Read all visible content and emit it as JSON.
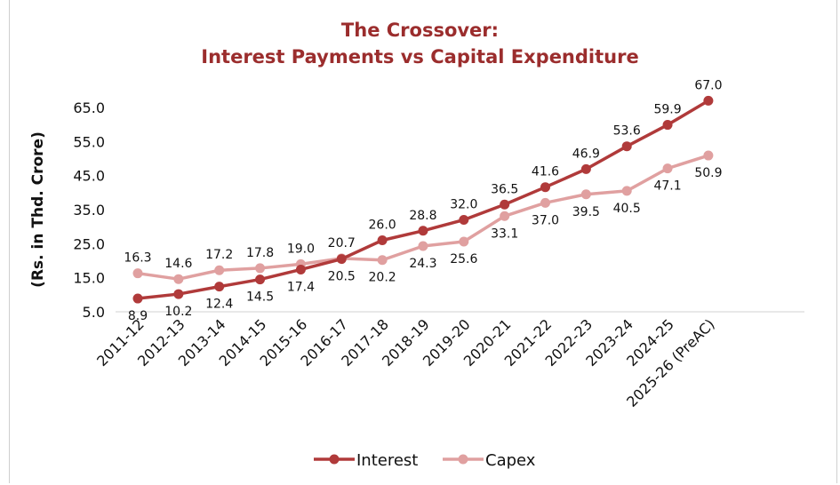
{
  "chart_data": {
    "type": "line",
    "title": "The Crossover:",
    "subtitle": "Interest Payments vs Capital Expenditure",
    "ylabel": "(Rs. in Thd. Crore)",
    "xlabel": "",
    "categories": [
      "2011-12",
      "2012-13",
      "2013-14",
      "2014-15",
      "2015-16",
      "2016-17",
      "2017-18",
      "2018-19",
      "2019-20",
      "2020-21",
      "2021-22",
      "2022-23",
      "2023-24",
      "2024-25",
      "2025-26 (PreAC)"
    ],
    "ylim": [
      5.0,
      65.0
    ],
    "yticks": [
      "5.0",
      "15.0",
      "25.0",
      "35.0",
      "45.0",
      "55.0",
      "65.0"
    ],
    "grid": false,
    "legend_position": "bottom",
    "series": [
      {
        "name": "Interest",
        "color": "#b03a3a",
        "values": [
          8.9,
          10.2,
          12.4,
          14.5,
          17.4,
          20.5,
          26.0,
          28.8,
          32.0,
          36.5,
          41.6,
          46.9,
          53.6,
          59.9,
          67.0
        ],
        "labels": [
          "8.9",
          "10.2",
          "12.4",
          "14.5",
          "17.4",
          "20.5",
          "26.0",
          "28.8",
          "32.0",
          "36.5",
          "41.6",
          "46.9",
          "53.6",
          "59.9",
          "67.0"
        ]
      },
      {
        "name": "Capex",
        "color": "#e0a0a0",
        "values": [
          16.3,
          14.6,
          17.2,
          17.8,
          19.0,
          20.7,
          20.2,
          24.3,
          25.6,
          33.1,
          37.0,
          39.5,
          40.5,
          47.1,
          50.9
        ],
        "labels": [
          "16.3",
          "14.6",
          "17.2",
          "17.8",
          "19.0",
          "20.7",
          "20.2",
          "24.3",
          "25.6",
          "33.1",
          "37.0",
          "39.5",
          "40.5",
          "47.1",
          "50.9"
        ]
      }
    ]
  }
}
